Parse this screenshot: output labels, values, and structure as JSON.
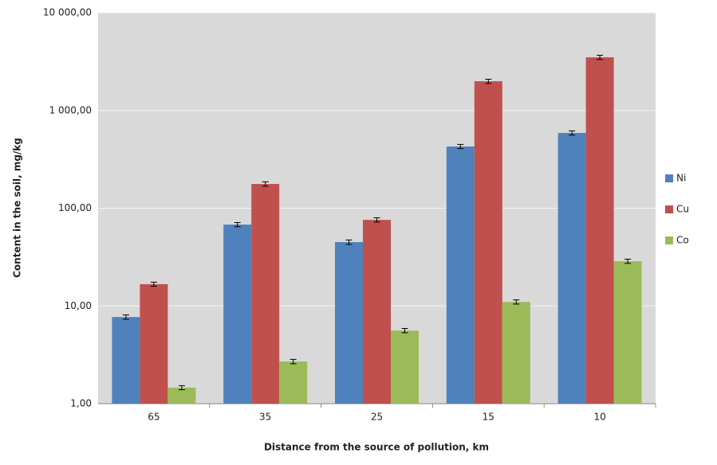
{
  "chart_data": {
    "type": "bar",
    "log_scale": true,
    "grid": true,
    "legend": "right",
    "x_label": "Distance from the source of pollution,  km",
    "y_label": "Content in the soil, mg/kg",
    "categories": [
      "65",
      "35",
      "25",
      "15",
      "10"
    ],
    "series": [
      {
        "name": "Ni",
        "color": "#4f81bd",
        "values": [
          7.7,
          68,
          45,
          428,
          589
        ],
        "errors": [
          0.4,
          3.4,
          2.3,
          21,
          29
        ]
      },
      {
        "name": "Cu",
        "color": "#c0504d",
        "values": [
          16.7,
          177,
          76,
          1990,
          3500
        ],
        "errors": [
          0.8,
          9,
          3.8,
          100,
          175
        ]
      },
      {
        "name": "Co",
        "color": "#9bbb59",
        "values": [
          1.46,
          2.7,
          5.6,
          11,
          28.7
        ],
        "errors": [
          0.07,
          0.14,
          0.28,
          0.55,
          1.4
        ]
      }
    ],
    "ylim": [
      1,
      10000
    ],
    "yticks": [
      {
        "value": 1,
        "label": "1,00"
      },
      {
        "value": 10,
        "label": "10,00"
      },
      {
        "value": 100,
        "label": "100,00"
      },
      {
        "value": 1000,
        "label": "1 000,00"
      },
      {
        "value": 10000,
        "label": "10 000,00"
      }
    ]
  }
}
